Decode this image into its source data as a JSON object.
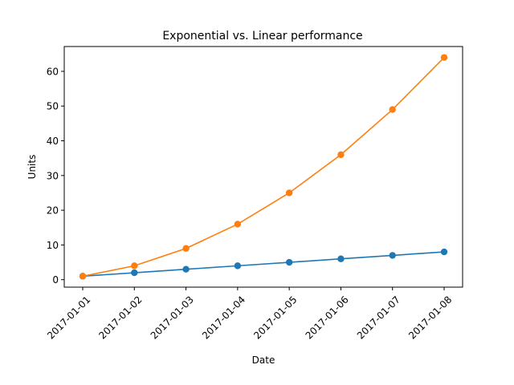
{
  "chart_data": {
    "type": "line",
    "title": "Exponential vs. Linear performance",
    "xlabel": "Date",
    "ylabel": "Units",
    "x": [
      "2017-01-01",
      "2017-01-02",
      "2017-01-03",
      "2017-01-04",
      "2017-01-05",
      "2017-01-06",
      "2017-01-07",
      "2017-01-08"
    ],
    "y_ticks": [
      0,
      10,
      20,
      30,
      40,
      50,
      60
    ],
    "ylim": [
      -2.15,
      67.15
    ],
    "grid": false,
    "legend": "none",
    "series": [
      {
        "values": [
          1,
          2,
          3,
          4,
          5,
          6,
          7,
          8
        ],
        "color": "#1f77b4",
        "marker": "circle"
      },
      {
        "values": [
          1,
          4,
          9,
          16,
          25,
          36,
          49,
          64
        ],
        "color": "#ff7f0e",
        "marker": "circle"
      }
    ]
  }
}
